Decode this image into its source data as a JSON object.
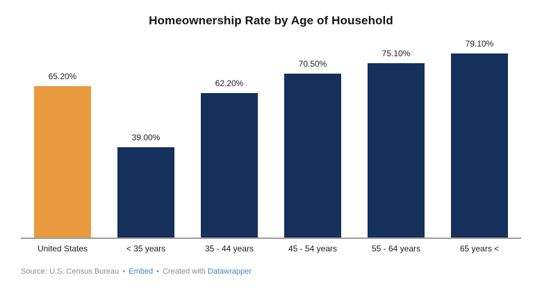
{
  "title": "Homeownership Rate by Age of Household",
  "chart_data": {
    "type": "bar",
    "categories": [
      "United States",
      "< 35 years",
      "35 - 44 years",
      "45 - 54 years",
      "55 - 64 years",
      "65 years <"
    ],
    "values": [
      65.2,
      39.0,
      62.2,
      70.5,
      75.1,
      79.1
    ],
    "value_labels": [
      "65.20%",
      "39.00%",
      "62.20%",
      "70.50%",
      "75.10%",
      "79.10%"
    ],
    "bar_colors": [
      "#E9993E",
      "#15305B",
      "#15305B",
      "#15305B",
      "#15305B",
      "#15305B"
    ],
    "title": "Homeownership Rate by Age of Household",
    "xlabel": "",
    "ylabel": "",
    "ylim": [
      0,
      80
    ],
    "grid": false,
    "legend": "none",
    "highlight_category": "United States"
  },
  "footer": {
    "source_text": "Source: U.S. Census Bureau",
    "separator": "•",
    "embed_label": "Embed",
    "created_text": "Created with",
    "datawrapper_label": "Datawrapper"
  },
  "colors": {
    "highlight_bar": "#E9993E",
    "default_bar": "#15305B",
    "axis_line": "#9e9e9e",
    "footer_text": "#8b8b8b",
    "link": "#3A87C8",
    "title_text": "#141414"
  }
}
